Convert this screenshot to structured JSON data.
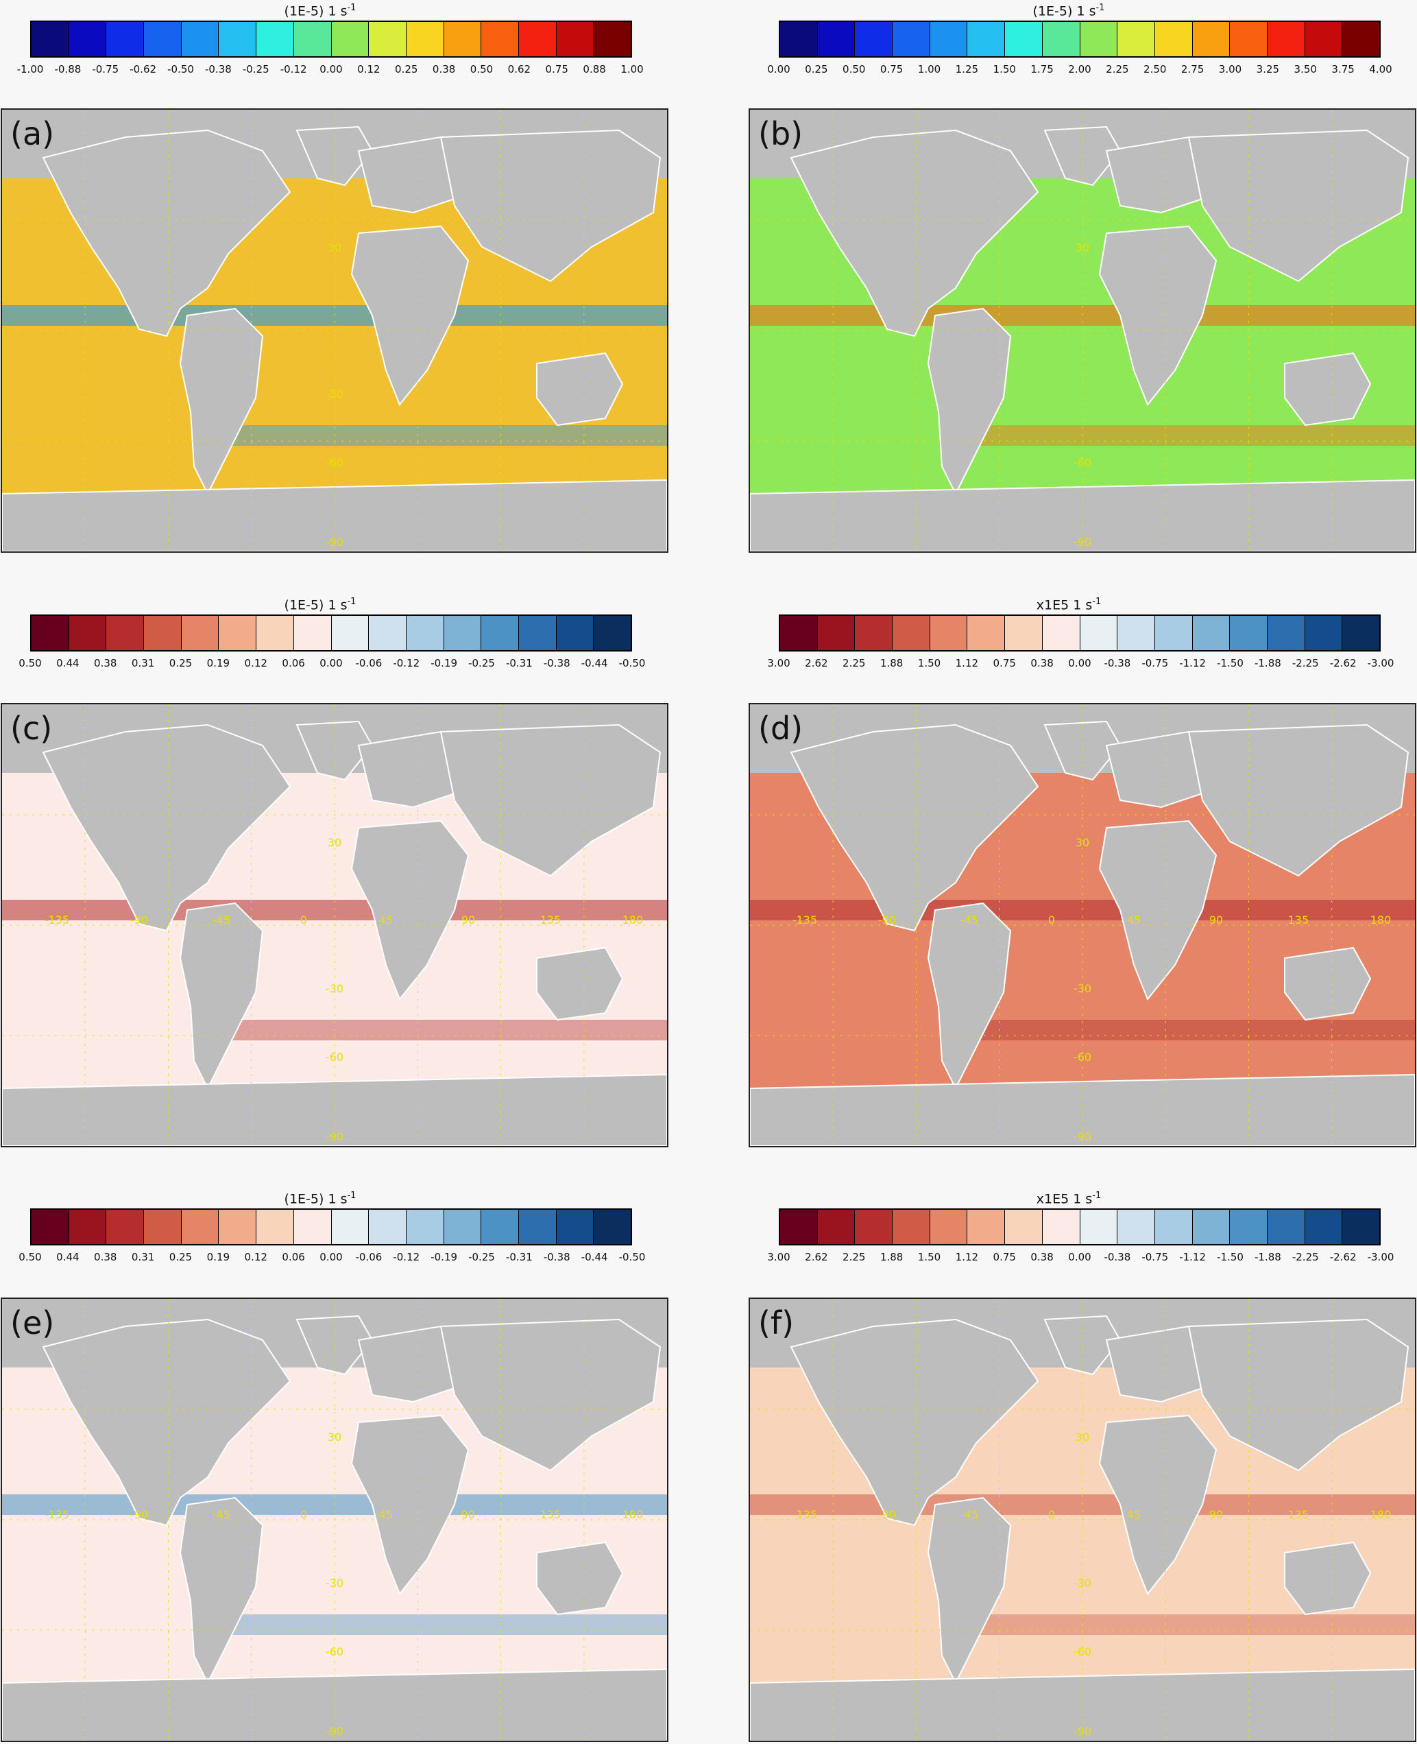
{
  "colorbars": [
    {
      "id": "cb-top-left",
      "title_main": "(1E-5) 1 s",
      "title_sup": "-1",
      "colors": [
        "#0a0a7c",
        "#0a0ac0",
        "#0f2de8",
        "#1763ef",
        "#1c92f0",
        "#24bff0",
        "#2ff0e0",
        "#59e89a",
        "#8fe858",
        "#d8ee3a",
        "#f7d520",
        "#f8a010",
        "#f86010",
        "#f42010",
        "#c40a0a",
        "#7a0000"
      ],
      "ticks": [
        "-1.00",
        "-0.88",
        "-0.75",
        "-0.62",
        "-0.50",
        "-0.38",
        "-0.25",
        "-0.12",
        "0.00",
        "0.12",
        "0.25",
        "0.38",
        "0.50",
        "0.62",
        "0.75",
        "0.88",
        "1.00"
      ]
    },
    {
      "id": "cb-top-right",
      "title_main": "(1E-5) 1 s",
      "title_sup": "-1",
      "colors": [
        "#0a0a7c",
        "#0a0ac0",
        "#0f2de8",
        "#1763ef",
        "#1c92f0",
        "#24bff0",
        "#2ff0e0",
        "#59e89a",
        "#8fe858",
        "#d8ee3a",
        "#f7d520",
        "#f8a010",
        "#f86010",
        "#f42010",
        "#c40a0a",
        "#7a0000"
      ],
      "ticks": [
        "0.00",
        "0.25",
        "0.50",
        "0.75",
        "1.00",
        "1.25",
        "1.50",
        "1.75",
        "2.00",
        "2.25",
        "2.50",
        "2.75",
        "3.00",
        "3.25",
        "3.50",
        "3.75",
        "4.00"
      ]
    },
    {
      "id": "cb-mid-left",
      "title_main": "(1E-5) 1 s",
      "title_sup": "-1",
      "colors": [
        "#67001f",
        "#99141f",
        "#b52d2d",
        "#d05b46",
        "#e58467",
        "#f2ac8c",
        "#f8d4bb",
        "#fbeae6",
        "#e8f0f4",
        "#cfe1ef",
        "#a8cce3",
        "#7fb3d5",
        "#4d92c4",
        "#2d6eae",
        "#154d8c",
        "#0a2f5e"
      ],
      "ticks": [
        "0.50",
        "0.44",
        "0.38",
        "0.31",
        "0.25",
        "0.19",
        "0.12",
        "0.06",
        "0.00",
        "-0.06",
        "-0.12",
        "-0.19",
        "-0.25",
        "-0.31",
        "-0.38",
        "-0.44",
        "-0.50"
      ]
    },
    {
      "id": "cb-mid-right",
      "title_main": "x1E5 1 s",
      "title_sup": "-1",
      "colors": [
        "#67001f",
        "#99141f",
        "#b52d2d",
        "#d05b46",
        "#e58467",
        "#f2ac8c",
        "#f8d4bb",
        "#fbeae6",
        "#e8f0f4",
        "#cfe1ef",
        "#a8cce3",
        "#7fb3d5",
        "#4d92c4",
        "#2d6eae",
        "#154d8c",
        "#0a2f5e"
      ],
      "ticks": [
        "3.00",
        "2.62",
        "2.25",
        "1.88",
        "1.50",
        "1.12",
        "0.75",
        "0.38",
        "0.00",
        "-0.38",
        "-0.75",
        "-1.12",
        "-1.50",
        "-1.88",
        "-2.25",
        "-2.62",
        "-3.00"
      ]
    },
    {
      "id": "cb-bot-left",
      "title_main": "(1E-5) 1 s",
      "title_sup": "-1",
      "colors": [
        "#67001f",
        "#99141f",
        "#b52d2d",
        "#d05b46",
        "#e58467",
        "#f2ac8c",
        "#f8d4bb",
        "#fbeae6",
        "#e8f0f4",
        "#cfe1ef",
        "#a8cce3",
        "#7fb3d5",
        "#4d92c4",
        "#2d6eae",
        "#154d8c",
        "#0a2f5e"
      ],
      "ticks": [
        "0.50",
        "0.44",
        "0.38",
        "0.31",
        "0.25",
        "0.19",
        "0.12",
        "0.06",
        "0.00",
        "-0.06",
        "-0.12",
        "-0.19",
        "-0.25",
        "-0.31",
        "-0.38",
        "-0.44",
        "-0.50"
      ]
    },
    {
      "id": "cb-bot-right",
      "title_main": "x1E5 1 s",
      "title_sup": "-1",
      "colors": [
        "#67001f",
        "#99141f",
        "#b52d2d",
        "#d05b46",
        "#e58467",
        "#f2ac8c",
        "#f8d4bb",
        "#fbeae6",
        "#e8f0f4",
        "#cfe1ef",
        "#a8cce3",
        "#7fb3d5",
        "#4d92c4",
        "#2d6eae",
        "#154d8c",
        "#0a2f5e"
      ],
      "ticks": [
        "3.00",
        "2.62",
        "2.25",
        "1.88",
        "1.50",
        "1.12",
        "0.75",
        "0.38",
        "0.00",
        "-0.38",
        "-0.75",
        "-1.12",
        "-1.50",
        "-1.88",
        "-2.25",
        "-2.62",
        "-3.00"
      ]
    }
  ],
  "panels": [
    {
      "label": "(a)",
      "ocean_color": "#f0c030",
      "accent": "#1c92f0",
      "lat_labels": [
        "30",
        "-30",
        "-60",
        "-90"
      ],
      "lon_labels": []
    },
    {
      "label": "(b)",
      "ocean_color": "#8fe858",
      "accent": "#f86010",
      "lat_labels": [
        "30",
        "-60",
        "-90"
      ],
      "lon_labels": []
    },
    {
      "label": "(c)",
      "ocean_color": "#fbeae6",
      "accent": "#b52d2d",
      "lat_labels": [
        "30",
        "-30",
        "-60",
        "-90"
      ],
      "lon_labels": [
        "-135",
        "-90",
        "-45",
        "0",
        "45",
        "90",
        "135",
        "180"
      ]
    },
    {
      "label": "(d)",
      "ocean_color": "#e58467",
      "accent": "#b52d2d",
      "lat_labels": [
        "30",
        "-30",
        "-60",
        "-90"
      ],
      "lon_labels": [
        "-135",
        "-90",
        "-45",
        "0",
        "45",
        "90",
        "135",
        "180"
      ]
    },
    {
      "label": "(e)",
      "ocean_color": "#fbeae6",
      "accent": "#4d92c4",
      "lat_labels": [
        "30",
        "-30",
        "-60",
        "-90"
      ],
      "lon_labels": [
        "-135",
        "-90",
        "-45",
        "0",
        "45",
        "90",
        "135",
        "180"
      ]
    },
    {
      "label": "(f)",
      "ocean_color": "#f8d4bb",
      "accent": "#d05b46",
      "lat_labels": [
        "30",
        "-30",
        "-60",
        "-90"
      ],
      "lon_labels": [
        "-135",
        "-90",
        "-45",
        "0",
        "45",
        "90",
        "135",
        "180"
      ]
    }
  ]
}
